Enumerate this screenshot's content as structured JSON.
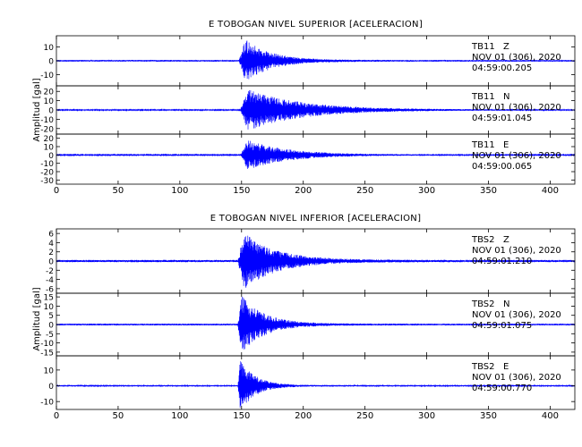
{
  "chart_data": [
    {
      "type": "line",
      "title": "E TOBOGAN NIVEL SUPERIOR [ACELERACION]",
      "ylabel": "Amplitud [gal]",
      "xlim": [
        0,
        420
      ],
      "xticks": [
        0,
        50,
        100,
        150,
        200,
        250,
        300,
        350,
        400
      ],
      "series": [
        {
          "name": "TB11 Z",
          "station": "TB11",
          "component": "Z",
          "date": "NOV 01 (306), 2020",
          "time": "04:59:00.205",
          "ylim": [
            -18,
            18
          ],
          "yticks": [
            10,
            0,
            -10
          ],
          "peak_gal": 16,
          "onset_x": 148,
          "peak_x": 153,
          "decay_s": 20,
          "pre_noise_gal": 0.6,
          "color": "#0000ff"
        },
        {
          "name": "TB11 N",
          "station": "TB11",
          "component": "N",
          "date": "NOV 01 (306), 2020",
          "time": "04:59:01.045",
          "ylim": [
            -26,
            26
          ],
          "yticks": [
            20,
            10,
            0,
            -10,
            -20
          ],
          "peak_gal": 23,
          "onset_x": 149,
          "peak_x": 155,
          "decay_s": 42,
          "pre_noise_gal": 0.6,
          "color": "#0000ff"
        },
        {
          "name": "TB11 E",
          "station": "TB11",
          "component": "E",
          "date": "NOV 01 (306), 2020",
          "time": "04:59:00.065",
          "ylim": [
            -35,
            25
          ],
          "yticks": [
            20,
            10,
            0,
            -10,
            -20,
            -30
          ],
          "peak_gal": 18,
          "onset_x": 149,
          "peak_x": 155,
          "decay_s": 32,
          "pre_noise_gal": 0.6,
          "color": "#0000ff"
        }
      ]
    },
    {
      "type": "line",
      "title": "E TOBOGAN NIVEL INFERIOR [ACELERACION]",
      "ylabel": "Amplitud [gal]",
      "xlim": [
        0,
        420
      ],
      "xticks": [
        0,
        50,
        100,
        150,
        200,
        250,
        300,
        350,
        400
      ],
      "series": [
        {
          "name": "TBS2 Z",
          "station": "TBS2",
          "component": "Z",
          "date": "NOV 01 (306), 2020",
          "time": "04:59:01.210",
          "ylim": [
            -7,
            7
          ],
          "yticks": [
            6,
            4,
            2,
            0,
            -2,
            -4,
            -6
          ],
          "peak_gal": 6.2,
          "onset_x": 147,
          "peak_x": 152,
          "decay_s": 26,
          "pre_noise_gal": 0.25,
          "color": "#0000ff"
        },
        {
          "name": "TBS2 N",
          "station": "TBS2",
          "component": "N",
          "date": "NOV 01 (306), 2020",
          "time": "04:59:01.075",
          "ylim": [
            -17,
            17
          ],
          "yticks": [
            15,
            10,
            5,
            0,
            -5,
            -10,
            -15
          ],
          "peak_gal": 16,
          "onset_x": 147,
          "peak_x": 150,
          "decay_s": 18,
          "pre_noise_gal": 0.5,
          "color": "#0000ff"
        },
        {
          "name": "TBS2 E",
          "station": "TBS2",
          "component": "E",
          "date": "NOV 01 (306), 2020",
          "time": "04:59:00.770",
          "ylim": [
            -15,
            19
          ],
          "yticks": [
            10,
            0,
            -10
          ],
          "peak_gal": 17,
          "onset_x": 147,
          "peak_x": 149,
          "decay_s": 12,
          "pre_noise_gal": 0.4,
          "color": "#0000ff"
        }
      ]
    }
  ]
}
